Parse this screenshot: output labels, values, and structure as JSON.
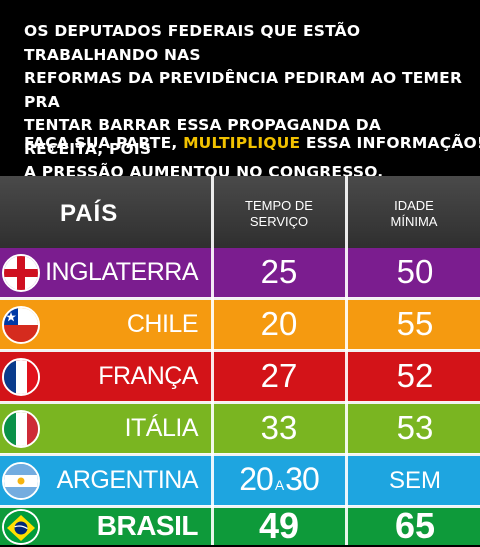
{
  "header": {
    "caption_lines": [
      "OS DEPUTADOS FEDERAIS QUE ESTÃO TRABALHANDO NAS",
      "REFORMAS DA PREVIDÊNCIA PEDIRAM AO TEMER PRA",
      "TENTAR BARRAR ESSA PROPAGANDA DA RECEITA, POIS",
      "A PRESSÃO AUMENTOU NO CONGRESSO."
    ],
    "cta_prefix": "FAÇA SUA PARTE, ",
    "cta_highlight": "MULTIPLIQUE",
    "cta_suffix": " ESSA INFORMAÇÃO!",
    "highlight_color": "#f2c200"
  },
  "table": {
    "col_country": "PAÍS",
    "col_tempo_1": "TEMPO DE",
    "col_tempo_2": "SERVIÇO",
    "col_idade_1": "IDADE",
    "col_idade_2": "MÍNIMA",
    "rows": [
      {
        "country": "INGLATERRA",
        "tempo": "25",
        "idade": "50",
        "color": "#7b1d8f",
        "flag": "england-flag-icon"
      },
      {
        "country": "CHILE",
        "tempo": "20",
        "idade": "55",
        "color": "#f59a10",
        "flag": "chile-flag-icon"
      },
      {
        "country": "FRANÇA",
        "tempo": "27",
        "idade": "52",
        "color": "#d31318",
        "flag": "france-flag-icon"
      },
      {
        "country": "ITÁLIA",
        "tempo": "33",
        "idade": "53",
        "color": "#7ab521",
        "flag": "italy-flag-icon"
      },
      {
        "country": "ARGENTINA",
        "tempo_a": "20",
        "tempo_sep": "A",
        "tempo_b": "30",
        "idade": "SEM",
        "color": "#1ea5e0",
        "flag": "argentina-flag-icon"
      },
      {
        "country": "BRASIL",
        "tempo": "49",
        "idade": "65",
        "color": "#0e9a3a",
        "flag": "brazil-flag-icon"
      }
    ]
  }
}
